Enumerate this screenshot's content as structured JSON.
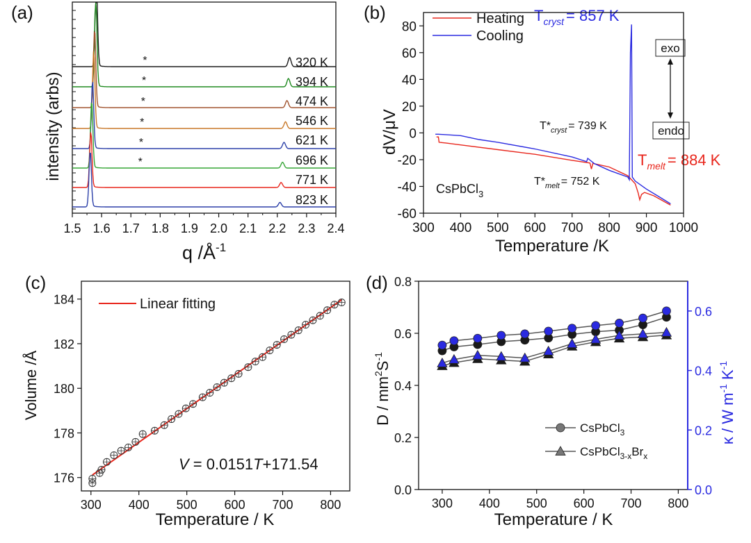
{
  "colors": {
    "red": "#e8261c",
    "blue": "#2a2ae0",
    "green": "#1f8a1f",
    "brown": "#a0522d",
    "orange": "#c8792a",
    "lightgreen": "#35a535",
    "navy": "#2b3fa8",
    "black": "#1a1a1a",
    "gray": "#7a7a7a"
  },
  "panels": {
    "a": {
      "label": "(a)"
    },
    "b": {
      "label": "(b)"
    },
    "c": {
      "label": "(c)"
    },
    "d": {
      "label": "(d)"
    }
  },
  "chart_data": [
    {
      "panel": "a",
      "type": "line",
      "xlabel_main": "q /Å",
      "xlabel_sup": "-1",
      "ylabel": "intensity (arbs)",
      "xlim": [
        1.5,
        2.4
      ],
      "xticks": [
        "1.5",
        "1.6",
        "1.7",
        "1.8",
        "1.9",
        "2.0",
        "2.1",
        "2.2",
        "2.3",
        "2.4"
      ],
      "asterisk_label": "*",
      "series": [
        {
          "name": "320 K",
          "color": "black",
          "peak1": 1.582,
          "peak2": 2.242,
          "p1h": 8,
          "p2h": 2.2,
          "star": 1.748
        },
        {
          "name": "394 K",
          "color": "green",
          "peak1": 1.58,
          "peak2": 2.238,
          "p1h": 8,
          "p2h": 2.0,
          "star": 1.745
        },
        {
          "name": "474 K",
          "color": "brown",
          "peak1": 1.576,
          "peak2": 2.233,
          "p1h": 7,
          "p2h": 1.7,
          "star": 1.742
        },
        {
          "name": "546 K",
          "color": "orange",
          "peak1": 1.573,
          "peak2": 2.228,
          "p1h": 7,
          "p2h": 1.6,
          "star": 1.738
        },
        {
          "name": "621 K",
          "color": "navy",
          "peak1": 1.569,
          "peak2": 2.223,
          "p1h": 6,
          "p2h": 1.5,
          "star": 1.735
        },
        {
          "name": "696 K",
          "color": "lightgreen",
          "peak1": 1.566,
          "peak2": 2.218,
          "p1h": 6,
          "p2h": 1.4,
          "star": 1.732
        },
        {
          "name": "771 K",
          "color": "red",
          "peak1": 1.563,
          "peak2": 2.213,
          "p1h": 5,
          "p2h": 1.2,
          "star": null
        },
        {
          "name": "823 K",
          "color": "navy",
          "peak1": 1.561,
          "peak2": 2.209,
          "p1h": 5,
          "p2h": 1.1,
          "star": null
        }
      ]
    },
    {
      "panel": "b",
      "type": "line",
      "xlabel": "Temperature /K",
      "ylabel_main": "dV/",
      "ylabel_mu": "μ",
      "ylabel_unit": "V",
      "xlim": [
        300,
        1000
      ],
      "ylim": [
        -60,
        90
      ],
      "xticks": [
        "300",
        "400",
        "500",
        "600",
        "700",
        "800",
        "900",
        "1000"
      ],
      "yticks": [
        "80",
        "60",
        "40",
        "20",
        "0",
        "-20",
        "-40",
        "-60"
      ],
      "legend": [
        {
          "name": "Heating",
          "color": "red"
        },
        {
          "name": "Cooling",
          "color": "blue"
        }
      ],
      "series": [
        {
          "name": "Heating",
          "color": "red",
          "points": [
            [
              335,
              -3
            ],
            [
              340,
              -3
            ],
            [
              342,
              -7
            ],
            [
              360,
              -7.5
            ],
            [
              400,
              -9
            ],
            [
              500,
              -12.5
            ],
            [
              600,
              -16
            ],
            [
              700,
              -20.5
            ],
            [
              748,
              -22.5
            ],
            [
              752,
              -27
            ],
            [
              756,
              -22.8
            ],
            [
              800,
              -25.5
            ],
            [
              850,
              -32
            ],
            [
              870,
              -38
            ],
            [
              878,
              -45
            ],
            [
              882,
              -50
            ],
            [
              887,
              -46
            ],
            [
              895,
              -44.5
            ],
            [
              920,
              -47
            ],
            [
              965,
              -54
            ]
          ]
        },
        {
          "name": "Cooling",
          "color": "blue",
          "points": [
            [
              965,
              -53
            ],
            [
              930,
              -47
            ],
            [
              900,
              -42
            ],
            [
              870,
              -36
            ],
            [
              862,
              -33
            ],
            [
              860,
              81
            ],
            [
              857,
              60
            ],
            [
              854,
              -35
            ],
            [
              850,
              -33
            ],
            [
              800,
              -28
            ],
            [
              760,
              -23
            ],
            [
              742,
              -19
            ],
            [
              739,
              -21.5
            ],
            [
              700,
              -18
            ],
            [
              600,
              -12
            ],
            [
              500,
              -7
            ],
            [
              450,
              -5
            ],
            [
              400,
              -2
            ],
            [
              340,
              -1
            ],
            [
              332,
              -1
            ]
          ]
        }
      ],
      "annotations": {
        "t_cryst": {
          "main": "T",
          "sub": "cryst",
          "value": "= 857 K"
        },
        "t_star_cryst": {
          "main": "T*",
          "sub": "cryst",
          "value": "= 739 K"
        },
        "t_star_melt": {
          "main": "T*",
          "sub": "melt",
          "value": "= 752 K"
        },
        "t_melt": {
          "main": "T",
          "sub": "melt",
          "value": "= 884 K"
        },
        "compound_main": "CsPbCl",
        "compound_sub": "3",
        "exo": "exo",
        "endo": "endo"
      }
    },
    {
      "panel": "c",
      "type": "scatter",
      "xlabel": "Temperature / K",
      "ylabel": "Volume /Å",
      "xlim": [
        280,
        840
      ],
      "ylim": [
        175.4,
        184.8
      ],
      "xticks": [
        "300",
        "400",
        "500",
        "600",
        "700",
        "800"
      ],
      "yticks": [
        "184",
        "182",
        "180",
        "178",
        "176"
      ],
      "legend": [
        {
          "name": "Linear fitting",
          "color": "red"
        }
      ],
      "fit": {
        "slope": 0.0151,
        "intercept": 171.54,
        "x_range": [
          303,
          823
        ]
      },
      "equation": {
        "var": "V",
        "mid": " = 0.0151",
        "tvar": "T",
        "tail": "+171.54"
      },
      "points_x": [
        303,
        303,
        318,
        322,
        333,
        348,
        363,
        378,
        393,
        408,
        433,
        453,
        468,
        483,
        498,
        513,
        533,
        548,
        563,
        578,
        593,
        608,
        628,
        643,
        658,
        673,
        688,
        703,
        718,
        733,
        748,
        763,
        778,
        793,
        808,
        823
      ],
      "points_y": [
        175.75,
        175.95,
        176.2,
        176.35,
        176.7,
        177.0,
        177.2,
        177.35,
        177.6,
        177.95,
        178.1,
        178.35,
        178.62,
        178.85,
        179.1,
        179.3,
        179.6,
        179.8,
        180.05,
        180.25,
        180.45,
        180.65,
        180.95,
        181.2,
        181.4,
        181.7,
        181.95,
        182.2,
        182.4,
        182.6,
        182.85,
        183.05,
        183.25,
        183.5,
        183.75,
        183.85
      ]
    },
    {
      "panel": "d",
      "type": "line",
      "xlabel": "Temperature / K",
      "ylabel_left": "D / mm",
      "ylabel_left_sup1": "2",
      "ylabel_left_mid": "S",
      "ylabel_left_sup2": "-1",
      "ylabel_right": "κ / W m",
      "ylabel_right_sup1": "-1",
      "ylabel_right_mid": " K",
      "ylabel_right_sup2": "-1",
      "xlim": [
        250,
        820
      ],
      "ylim_left": [
        0,
        0.8
      ],
      "ylim_right": [
        0,
        0.7
      ],
      "xticks": [
        "300",
        "400",
        "500",
        "600",
        "700",
        "800"
      ],
      "yticks_left": [
        "0.0",
        "0.2",
        "0.4",
        "0.6",
        "0.8"
      ],
      "yticks_right": [
        "0.0",
        "0.2",
        "0.4",
        "0.6"
      ],
      "x": [
        300,
        325,
        375,
        425,
        475,
        525,
        575,
        625,
        675,
        725,
        775
      ],
      "series": [
        {
          "name": "CsPbCl3 D",
          "marker": "circle",
          "axis": "left",
          "fill": "black",
          "values": [
            0.533,
            0.548,
            0.557,
            0.568,
            0.574,
            0.582,
            0.596,
            0.606,
            0.612,
            0.633,
            0.662
          ]
        },
        {
          "name": "CsPbCl3 κ",
          "marker": "circle",
          "axis": "right",
          "fill": "blue",
          "values": [
            0.485,
            0.5,
            0.508,
            0.518,
            0.523,
            0.532,
            0.542,
            0.551,
            0.559,
            0.576,
            0.6
          ]
        },
        {
          "name": "CsPbCl3-xBrx D",
          "marker": "triangle",
          "axis": "left",
          "fill": "black",
          "values": [
            0.475,
            0.487,
            0.502,
            0.497,
            0.492,
            0.52,
            0.55,
            0.567,
            0.581,
            0.586,
            0.593
          ]
        },
        {
          "name": "CsPbCl3-xBrx κ",
          "marker": "triangle",
          "axis": "right",
          "fill": "blue",
          "values": [
            0.425,
            0.437,
            0.451,
            0.447,
            0.442,
            0.465,
            0.49,
            0.505,
            0.518,
            0.523,
            0.528
          ]
        }
      ],
      "legend": [
        {
          "marker": "circle",
          "main": "CsPbCl",
          "sub1": "3",
          "mid": "",
          "sub2": "",
          "tail": ""
        },
        {
          "marker": "triangle",
          "main": "CsPbCl",
          "sub1": "3-x",
          "mid": "Br",
          "sub2": "x",
          "tail": ""
        }
      ]
    }
  ]
}
